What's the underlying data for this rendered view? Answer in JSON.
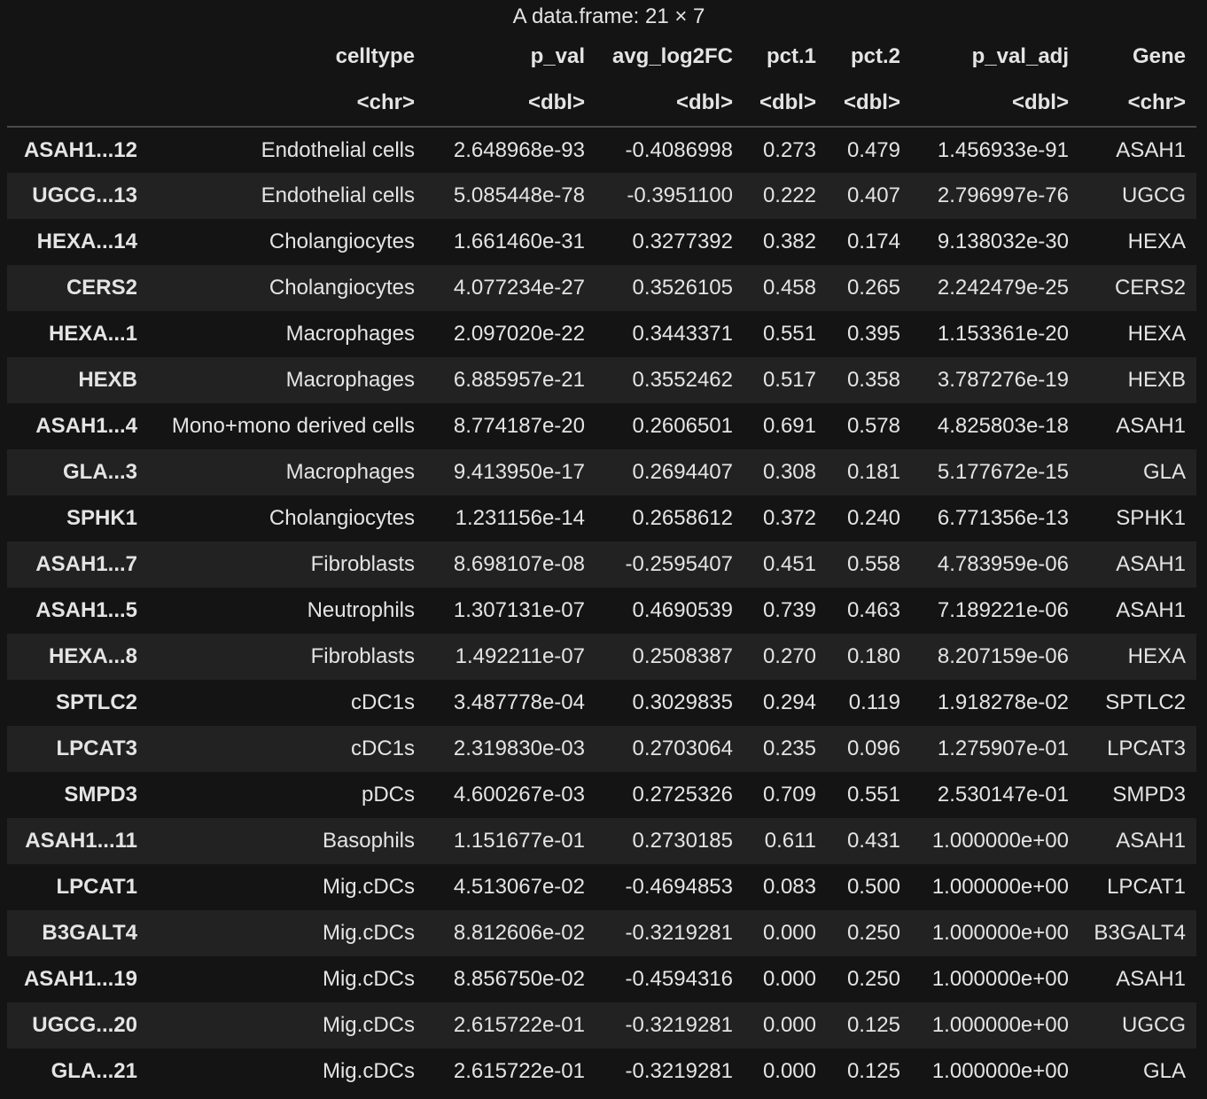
{
  "caption": "A data.frame: 21 × 7",
  "columns": [
    {
      "name": "celltype",
      "type": "<chr>"
    },
    {
      "name": "p_val",
      "type": "<dbl>"
    },
    {
      "name": "avg_log2FC",
      "type": "<dbl>"
    },
    {
      "name": "pct.1",
      "type": "<dbl>"
    },
    {
      "name": "pct.2",
      "type": "<dbl>"
    },
    {
      "name": "p_val_adj",
      "type": "<dbl>"
    },
    {
      "name": "Gene",
      "type": "<chr>"
    }
  ],
  "rows": [
    {
      "rowname": "ASAH1...12",
      "cells": [
        "Endothelial cells",
        "2.648968e-93",
        "-0.4086998",
        "0.273",
        "0.479",
        "1.456933e-91",
        "ASAH1"
      ]
    },
    {
      "rowname": "UGCG...13",
      "cells": [
        "Endothelial cells",
        "5.085448e-78",
        "-0.3951100",
        "0.222",
        "0.407",
        "2.796997e-76",
        "UGCG"
      ]
    },
    {
      "rowname": "HEXA...14",
      "cells": [
        "Cholangiocytes",
        "1.661460e-31",
        "0.3277392",
        "0.382",
        "0.174",
        "9.138032e-30",
        "HEXA"
      ]
    },
    {
      "rowname": "CERS2",
      "cells": [
        "Cholangiocytes",
        "4.077234e-27",
        "0.3526105",
        "0.458",
        "0.265",
        "2.242479e-25",
        "CERS2"
      ]
    },
    {
      "rowname": "HEXA...1",
      "cells": [
        "Macrophages",
        "2.097020e-22",
        "0.3443371",
        "0.551",
        "0.395",
        "1.153361e-20",
        "HEXA"
      ]
    },
    {
      "rowname": "HEXB",
      "cells": [
        "Macrophages",
        "6.885957e-21",
        "0.3552462",
        "0.517",
        "0.358",
        "3.787276e-19",
        "HEXB"
      ]
    },
    {
      "rowname": "ASAH1...4",
      "cells": [
        "Mono+mono derived cells",
        "8.774187e-20",
        "0.2606501",
        "0.691",
        "0.578",
        "4.825803e-18",
        "ASAH1"
      ]
    },
    {
      "rowname": "GLA...3",
      "cells": [
        "Macrophages",
        "9.413950e-17",
        "0.2694407",
        "0.308",
        "0.181",
        "5.177672e-15",
        "GLA"
      ]
    },
    {
      "rowname": "SPHK1",
      "cells": [
        "Cholangiocytes",
        "1.231156e-14",
        "0.2658612",
        "0.372",
        "0.240",
        "6.771356e-13",
        "SPHK1"
      ]
    },
    {
      "rowname": "ASAH1...7",
      "cells": [
        "Fibroblasts",
        "8.698107e-08",
        "-0.2595407",
        "0.451",
        "0.558",
        "4.783959e-06",
        "ASAH1"
      ]
    },
    {
      "rowname": "ASAH1...5",
      "cells": [
        "Neutrophils",
        "1.307131e-07",
        "0.4690539",
        "0.739",
        "0.463",
        "7.189221e-06",
        "ASAH1"
      ]
    },
    {
      "rowname": "HEXA...8",
      "cells": [
        "Fibroblasts",
        "1.492211e-07",
        "0.2508387",
        "0.270",
        "0.180",
        "8.207159e-06",
        "HEXA"
      ]
    },
    {
      "rowname": "SPTLC2",
      "cells": [
        "cDC1s",
        "3.487778e-04",
        "0.3029835",
        "0.294",
        "0.119",
        "1.918278e-02",
        "SPTLC2"
      ]
    },
    {
      "rowname": "LPCAT3",
      "cells": [
        "cDC1s",
        "2.319830e-03",
        "0.2703064",
        "0.235",
        "0.096",
        "1.275907e-01",
        "LPCAT3"
      ]
    },
    {
      "rowname": "SMPD3",
      "cells": [
        "pDCs",
        "4.600267e-03",
        "0.2725326",
        "0.709",
        "0.551",
        "2.530147e-01",
        "SMPD3"
      ]
    },
    {
      "rowname": "ASAH1...11",
      "cells": [
        "Basophils",
        "1.151677e-01",
        "0.2730185",
        "0.611",
        "0.431",
        "1.000000e+00",
        "ASAH1"
      ]
    },
    {
      "rowname": "LPCAT1",
      "cells": [
        "Mig.cDCs",
        "4.513067e-02",
        "-0.4694853",
        "0.083",
        "0.500",
        "1.000000e+00",
        "LPCAT1"
      ]
    },
    {
      "rowname": "B3GALT4",
      "cells": [
        "Mig.cDCs",
        "8.812606e-02",
        "-0.3219281",
        "0.000",
        "0.250",
        "1.000000e+00",
        "B3GALT4"
      ]
    },
    {
      "rowname": "ASAH1...19",
      "cells": [
        "Mig.cDCs",
        "8.856750e-02",
        "-0.4594316",
        "0.000",
        "0.250",
        "1.000000e+00",
        "ASAH1"
      ]
    },
    {
      "rowname": "UGCG...20",
      "cells": [
        "Mig.cDCs",
        "2.615722e-01",
        "-0.3219281",
        "0.000",
        "0.125",
        "1.000000e+00",
        "UGCG"
      ]
    },
    {
      "rowname": "GLA...21",
      "cells": [
        "Mig.cDCs",
        "2.615722e-01",
        "-0.3219281",
        "0.000",
        "0.125",
        "1.000000e+00",
        "GLA"
      ]
    }
  ]
}
